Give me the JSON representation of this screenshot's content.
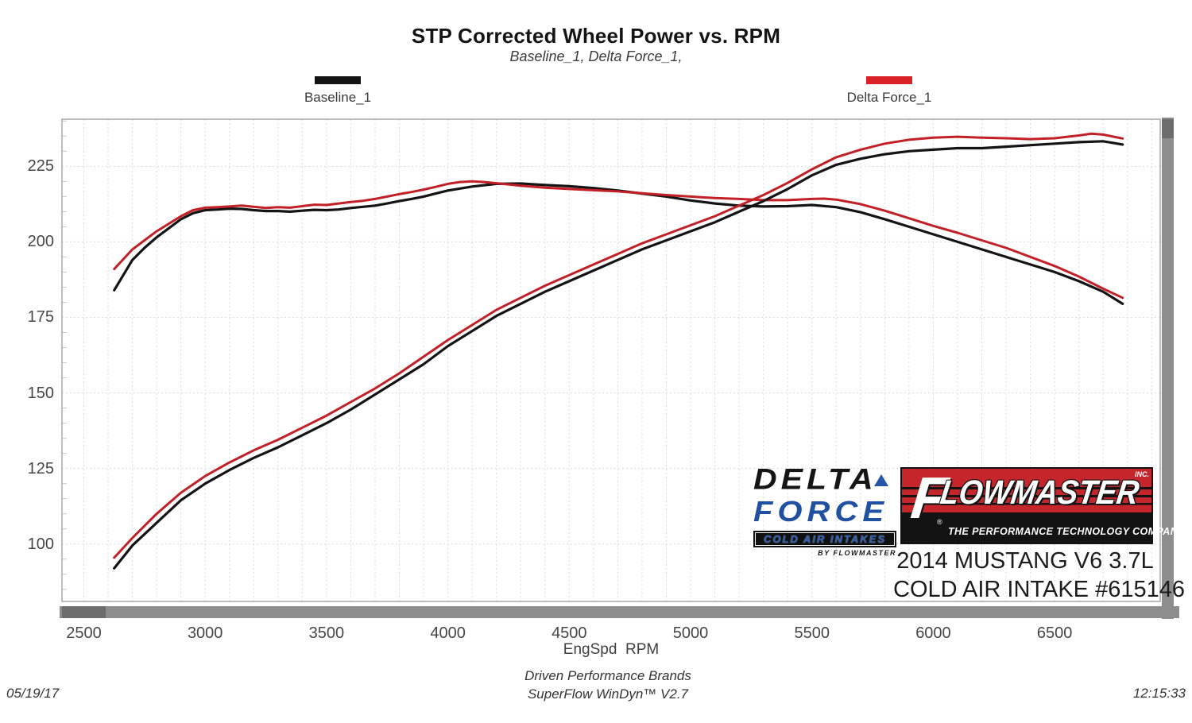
{
  "header": {
    "title": "STP Corrected Wheel Power vs. RPM",
    "subtitle": "Baseline_1, Delta Force_1,"
  },
  "legend": [
    {
      "label": "Baseline_1",
      "color": "#141414"
    },
    {
      "label": "Delta Force_1",
      "color": "#da2128"
    }
  ],
  "chart_data": {
    "type": "line",
    "title": "STP Corrected Wheel Power vs. RPM",
    "xlabel": "EngSpd  RPM",
    "ylabel": "",
    "xlim": [
      2410,
      6935
    ],
    "ylim": [
      81,
      240.6
    ],
    "x_ticks": [
      2500,
      3000,
      3500,
      4000,
      4500,
      5000,
      5500,
      6000,
      6500
    ],
    "y_ticks": [
      100,
      125,
      150,
      175,
      200,
      225
    ],
    "x_minor_grid_step": 100,
    "y_major_grid_step": 25,
    "y_minor_tick_step": 5,
    "grid": "dashed-light",
    "legend_position": "top",
    "series": [
      {
        "name": "Baseline_1 torque",
        "color": "#141414",
        "width": 3.2,
        "points": [
          [
            2625,
            184
          ],
          [
            2700,
            194
          ],
          [
            2750,
            198
          ],
          [
            2800,
            201.5
          ],
          [
            2850,
            204.5
          ],
          [
            2900,
            207.5
          ],
          [
            2950,
            209.5
          ],
          [
            3000,
            210.5
          ],
          [
            3050,
            210.7
          ],
          [
            3100,
            211
          ],
          [
            3150,
            210.9
          ],
          [
            3200,
            210.5
          ],
          [
            3250,
            210.2
          ],
          [
            3300,
            210.2
          ],
          [
            3350,
            210
          ],
          [
            3400,
            210.3
          ],
          [
            3450,
            210.6
          ],
          [
            3500,
            210.5
          ],
          [
            3550,
            210.7
          ],
          [
            3600,
            211.2
          ],
          [
            3650,
            211.6
          ],
          [
            3700,
            212
          ],
          [
            3750,
            212.7
          ],
          [
            3800,
            213.5
          ],
          [
            3850,
            214.2
          ],
          [
            3900,
            215
          ],
          [
            3950,
            216
          ],
          [
            4000,
            217
          ],
          [
            4100,
            218.3
          ],
          [
            4200,
            219.2
          ],
          [
            4300,
            219.3
          ],
          [
            4400,
            218.8
          ],
          [
            4500,
            218.4
          ],
          [
            4600,
            217.8
          ],
          [
            4700,
            217
          ],
          [
            4800,
            216
          ],
          [
            4900,
            215
          ],
          [
            5000,
            213.7
          ],
          [
            5100,
            212.7
          ],
          [
            5200,
            212
          ],
          [
            5300,
            211.7
          ],
          [
            5400,
            211.8
          ],
          [
            5500,
            212.2
          ],
          [
            5600,
            211.5
          ],
          [
            5700,
            209.8
          ],
          [
            5800,
            207.5
          ],
          [
            5900,
            205
          ],
          [
            6000,
            202.5
          ],
          [
            6100,
            200
          ],
          [
            6200,
            197.5
          ],
          [
            6300,
            195
          ],
          [
            6400,
            192.5
          ],
          [
            6500,
            190
          ],
          [
            6600,
            187
          ],
          [
            6700,
            183.5
          ],
          [
            6780,
            179.5
          ]
        ]
      },
      {
        "name": "Delta Force_1 torque",
        "color": "#c22026",
        "width": 3,
        "points": [
          [
            2625,
            191
          ],
          [
            2700,
            197.5
          ],
          [
            2750,
            200.5
          ],
          [
            2800,
            203.5
          ],
          [
            2850,
            206
          ],
          [
            2900,
            208.5
          ],
          [
            2950,
            210.5
          ],
          [
            3000,
            211.3
          ],
          [
            3050,
            211.5
          ],
          [
            3100,
            211.7
          ],
          [
            3150,
            212
          ],
          [
            3200,
            211.6
          ],
          [
            3250,
            211.2
          ],
          [
            3300,
            211.5
          ],
          [
            3350,
            211.3
          ],
          [
            3400,
            211.8
          ],
          [
            3450,
            212.3
          ],
          [
            3500,
            212.2
          ],
          [
            3550,
            212.7
          ],
          [
            3600,
            213.2
          ],
          [
            3650,
            213.6
          ],
          [
            3700,
            214.2
          ],
          [
            3750,
            215
          ],
          [
            3800,
            215.8
          ],
          [
            3850,
            216.5
          ],
          [
            3900,
            217.3
          ],
          [
            3950,
            218.2
          ],
          [
            4000,
            219.2
          ],
          [
            4050,
            219.8
          ],
          [
            4100,
            220
          ],
          [
            4150,
            219.8
          ],
          [
            4200,
            219.4
          ],
          [
            4300,
            218.6
          ],
          [
            4400,
            217.9
          ],
          [
            4500,
            217.5
          ],
          [
            4600,
            217.1
          ],
          [
            4700,
            216.7
          ],
          [
            4800,
            216.1
          ],
          [
            4900,
            215.5
          ],
          [
            5000,
            215
          ],
          [
            5100,
            214.5
          ],
          [
            5200,
            214.2
          ],
          [
            5300,
            213.8
          ],
          [
            5400,
            213.8
          ],
          [
            5500,
            214.2
          ],
          [
            5550,
            214.3
          ],
          [
            5600,
            214
          ],
          [
            5700,
            212.5
          ],
          [
            5800,
            210.3
          ],
          [
            5900,
            207.8
          ],
          [
            6000,
            205.3
          ],
          [
            6100,
            203
          ],
          [
            6200,
            200.5
          ],
          [
            6300,
            198
          ],
          [
            6400,
            195
          ],
          [
            6500,
            192
          ],
          [
            6600,
            188.5
          ],
          [
            6700,
            184.5
          ],
          [
            6780,
            181.5
          ]
        ]
      },
      {
        "name": "Baseline_1 power",
        "color": "#141414",
        "width": 3.2,
        "points": [
          [
            2625,
            92
          ],
          [
            2700,
            99.5
          ],
          [
            2800,
            107
          ],
          [
            2900,
            114.5
          ],
          [
            3000,
            120
          ],
          [
            3100,
            124.5
          ],
          [
            3200,
            128.5
          ],
          [
            3300,
            132
          ],
          [
            3400,
            136
          ],
          [
            3500,
            140
          ],
          [
            3600,
            144.5
          ],
          [
            3700,
            149.5
          ],
          [
            3800,
            154.5
          ],
          [
            3900,
            159.5
          ],
          [
            4000,
            165.5
          ],
          [
            4100,
            170.5
          ],
          [
            4200,
            175.5
          ],
          [
            4300,
            179.5
          ],
          [
            4400,
            183.5
          ],
          [
            4500,
            187
          ],
          [
            4600,
            190.5
          ],
          [
            4700,
            194
          ],
          [
            4800,
            197.5
          ],
          [
            4900,
            200.5
          ],
          [
            5000,
            203.5
          ],
          [
            5100,
            206.5
          ],
          [
            5200,
            210
          ],
          [
            5300,
            213.5
          ],
          [
            5400,
            217.5
          ],
          [
            5500,
            222
          ],
          [
            5600,
            225.5
          ],
          [
            5700,
            227.5
          ],
          [
            5800,
            229
          ],
          [
            5900,
            230
          ],
          [
            6000,
            230.5
          ],
          [
            6100,
            231
          ],
          [
            6200,
            231
          ],
          [
            6300,
            231.5
          ],
          [
            6400,
            232
          ],
          [
            6500,
            232.5
          ],
          [
            6600,
            233
          ],
          [
            6700,
            233.3
          ],
          [
            6780,
            232.2
          ]
        ]
      },
      {
        "name": "Delta Force_1 power",
        "color": "#c22026",
        "width": 3,
        "points": [
          [
            2625,
            95.5
          ],
          [
            2700,
            102
          ],
          [
            2800,
            110
          ],
          [
            2900,
            117
          ],
          [
            3000,
            122.5
          ],
          [
            3100,
            127
          ],
          [
            3200,
            131
          ],
          [
            3300,
            134.5
          ],
          [
            3400,
            138.5
          ],
          [
            3500,
            142.5
          ],
          [
            3600,
            147
          ],
          [
            3700,
            151.5
          ],
          [
            3800,
            156.5
          ],
          [
            3900,
            162
          ],
          [
            4000,
            167.5
          ],
          [
            4100,
            172.5
          ],
          [
            4200,
            177.5
          ],
          [
            4300,
            181.5
          ],
          [
            4400,
            185.5
          ],
          [
            4500,
            189
          ],
          [
            4600,
            192.5
          ],
          [
            4700,
            196
          ],
          [
            4800,
            199.5
          ],
          [
            4900,
            202.5
          ],
          [
            5000,
            205.5
          ],
          [
            5100,
            208.5
          ],
          [
            5200,
            212
          ],
          [
            5300,
            215.5
          ],
          [
            5400,
            219.5
          ],
          [
            5500,
            224
          ],
          [
            5600,
            228
          ],
          [
            5700,
            230.5
          ],
          [
            5800,
            232.5
          ],
          [
            5900,
            233.8
          ],
          [
            6000,
            234.5
          ],
          [
            6100,
            234.8
          ],
          [
            6200,
            234.5
          ],
          [
            6300,
            234.3
          ],
          [
            6400,
            234
          ],
          [
            6500,
            234.3
          ],
          [
            6600,
            235.2
          ],
          [
            6650,
            235.8
          ],
          [
            6700,
            235.5
          ],
          [
            6780,
            234.2
          ]
        ]
      }
    ]
  },
  "axis": {
    "x_title": "EngSpd  RPM"
  },
  "branding": {
    "deltaforce": {
      "line1": "DELTA",
      "line2": "FORCE",
      "band": "COLD AIR INTAKES",
      "byline": "BY FLOWMASTER",
      "blue": "#2050a0"
    },
    "flowmaster": {
      "f_letter": "F",
      "wordmark": "LOWMASTER",
      "inc": "INC.",
      "reg": "®",
      "tagline": "THE PERFORMANCE TECHNOLOGY COMPANY",
      "red": "#c4262c"
    },
    "vehicle_line1": "2014 MUSTANG V6 3.7L",
    "vehicle_line2": "COLD AIR INTAKE #615146"
  },
  "footer": {
    "date": "05/19/17",
    "brand_line": "Driven Performance Brands",
    "software_line": "SuperFlow WinDyn™ V2.7",
    "time": "12:15:33"
  }
}
